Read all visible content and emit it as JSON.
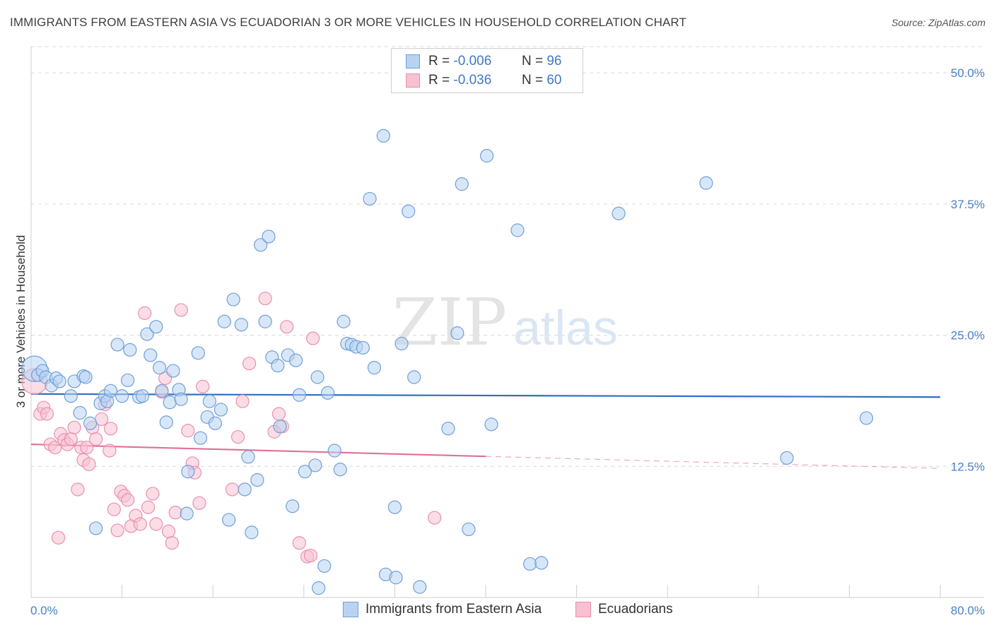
{
  "header": {
    "title": "IMMIGRANTS FROM EASTERN ASIA VS ECUADORIAN 3 OR MORE VEHICLES IN HOUSEHOLD CORRELATION CHART",
    "source": "Source: ZipAtlas.com"
  },
  "legend_stats": [
    {
      "r_label": "R =",
      "r_value": "-0.006",
      "n_label": "N =",
      "n_value": "96"
    },
    {
      "r_label": "R =",
      "r_value": "-0.036",
      "n_label": "N =",
      "n_value": "60"
    }
  ],
  "watermark": {
    "zip": "ZIP",
    "atlas": "atlas"
  },
  "colors": {
    "blue_fill": "#b8d3f2",
    "blue_stroke": "#6f9fd8",
    "blue_line": "#2f6fc1",
    "pink_fill": "#f7c1d1",
    "pink_stroke": "#e890ad",
    "pink_line": "#e06f99",
    "tick_text": "#4a80c8",
    "grid": "#d9d9d9"
  },
  "chart_data": {
    "type": "scatter",
    "title": "IMMIGRANTS FROM EASTERN ASIA VS ECUADORIAN 3 OR MORE VEHICLES IN HOUSEHOLD CORRELATION CHART",
    "xlabel": "",
    "ylabel": "3 or more Vehicles in Household",
    "xlim": [
      0,
      80
    ],
    "ylim": [
      0,
      52.5
    ],
    "x_tick_labels": [
      "0.0%",
      "80.0%"
    ],
    "y_ticks": [
      12.5,
      25.0,
      37.5,
      50.0
    ],
    "y_tick_labels": [
      "12.5%",
      "25.0%",
      "37.5%",
      "50.0%"
    ],
    "grid": true,
    "legend_position": "top-center",
    "series": [
      {
        "name": "Immigrants from Eastern Asia",
        "r": -0.006,
        "n": 96,
        "trend": {
          "x0": 0,
          "y0": 19.4,
          "x1": 80,
          "y1": 19.1
        },
        "points": [
          [
            0.3,
            21.8
          ],
          [
            0.6,
            21.2
          ],
          [
            1.0,
            21.6
          ],
          [
            1.3,
            21.0
          ],
          [
            1.8,
            20.2
          ],
          [
            2.2,
            20.9
          ],
          [
            2.5,
            20.6
          ],
          [
            3.5,
            19.2
          ],
          [
            3.8,
            20.6
          ],
          [
            4.3,
            17.6
          ],
          [
            4.6,
            21.1
          ],
          [
            4.8,
            21.0
          ],
          [
            5.2,
            16.6
          ],
          [
            5.7,
            6.6
          ],
          [
            6.1,
            18.5
          ],
          [
            6.5,
            19.2
          ],
          [
            6.7,
            18.7
          ],
          [
            7.0,
            19.7
          ],
          [
            7.6,
            24.1
          ],
          [
            8.0,
            19.2
          ],
          [
            8.5,
            20.7
          ],
          [
            8.7,
            23.6
          ],
          [
            9.5,
            19.1
          ],
          [
            9.8,
            19.2
          ],
          [
            10.2,
            25.1
          ],
          [
            10.5,
            23.1
          ],
          [
            11.0,
            25.8
          ],
          [
            11.3,
            21.9
          ],
          [
            11.5,
            19.7
          ],
          [
            11.9,
            16.7
          ],
          [
            12.2,
            18.6
          ],
          [
            12.5,
            21.6
          ],
          [
            13.0,
            19.8
          ],
          [
            13.2,
            18.9
          ],
          [
            13.7,
            8.0
          ],
          [
            13.8,
            12.0
          ],
          [
            14.7,
            23.3
          ],
          [
            14.9,
            15.2
          ],
          [
            15.5,
            17.2
          ],
          [
            15.7,
            18.7
          ],
          [
            16.2,
            16.6
          ],
          [
            16.7,
            17.9
          ],
          [
            17.0,
            26.3
          ],
          [
            17.4,
            7.4
          ],
          [
            17.8,
            28.4
          ],
          [
            18.5,
            26.0
          ],
          [
            18.8,
            10.3
          ],
          [
            19.1,
            13.4
          ],
          [
            19.4,
            6.2
          ],
          [
            19.9,
            11.2
          ],
          [
            20.2,
            33.6
          ],
          [
            20.6,
            26.3
          ],
          [
            20.9,
            34.4
          ],
          [
            21.2,
            22.9
          ],
          [
            21.7,
            22.1
          ],
          [
            21.9,
            16.3
          ],
          [
            22.6,
            23.1
          ],
          [
            23.0,
            8.7
          ],
          [
            23.3,
            22.6
          ],
          [
            23.6,
            19.3
          ],
          [
            24.1,
            12.0
          ],
          [
            25.0,
            12.6
          ],
          [
            25.2,
            21.0
          ],
          [
            25.3,
            0.9
          ],
          [
            25.8,
            3.0
          ],
          [
            26.1,
            19.5
          ],
          [
            26.7,
            14.0
          ],
          [
            27.2,
            12.2
          ],
          [
            27.5,
            26.3
          ],
          [
            27.8,
            24.2
          ],
          [
            28.2,
            24.1
          ],
          [
            28.6,
            23.9
          ],
          [
            29.2,
            23.8
          ],
          [
            29.8,
            38.0
          ],
          [
            30.2,
            21.9
          ],
          [
            31.2,
            2.2
          ],
          [
            32.0,
            8.6
          ],
          [
            32.1,
            1.9
          ],
          [
            32.6,
            24.2
          ],
          [
            33.2,
            36.8
          ],
          [
            33.7,
            21.0
          ],
          [
            34.2,
            1.0
          ],
          [
            36.7,
            16.1
          ],
          [
            37.5,
            25.2
          ],
          [
            37.9,
            39.4
          ],
          [
            38.5,
            6.5
          ],
          [
            40.1,
            42.1
          ],
          [
            40.5,
            16.5
          ],
          [
            43.9,
            3.2
          ],
          [
            44.9,
            3.3
          ],
          [
            51.7,
            36.6
          ],
          [
            59.4,
            39.5
          ],
          [
            66.5,
            13.3
          ],
          [
            73.5,
            17.1
          ],
          [
            42.8,
            35.0
          ],
          [
            31.0,
            44.0
          ]
        ]
      },
      {
        "name": "Ecuadorians",
        "r": -0.036,
        "n": 60,
        "trend": {
          "x0": 0,
          "y0": 14.6,
          "x1": 80,
          "y1": 12.3,
          "solid_until_x": 40
        },
        "points": [
          [
            0.3,
            20.6
          ],
          [
            0.8,
            17.5
          ],
          [
            1.1,
            18.1
          ],
          [
            1.4,
            17.5
          ],
          [
            1.7,
            14.6
          ],
          [
            2.1,
            14.3
          ],
          [
            2.4,
            5.7
          ],
          [
            2.6,
            15.6
          ],
          [
            2.9,
            15.0
          ],
          [
            3.2,
            14.6
          ],
          [
            3.5,
            15.1
          ],
          [
            3.8,
            16.2
          ],
          [
            4.1,
            10.3
          ],
          [
            4.4,
            14.3
          ],
          [
            4.6,
            13.1
          ],
          [
            4.9,
            14.3
          ],
          [
            5.1,
            12.7
          ],
          [
            5.4,
            16.2
          ],
          [
            5.7,
            15.1
          ],
          [
            6.2,
            17.0
          ],
          [
            6.5,
            18.4
          ],
          [
            6.9,
            14.0
          ],
          [
            7.0,
            16.1
          ],
          [
            7.3,
            8.4
          ],
          [
            7.6,
            6.4
          ],
          [
            7.9,
            10.1
          ],
          [
            8.2,
            9.7
          ],
          [
            8.5,
            9.3
          ],
          [
            8.8,
            6.8
          ],
          [
            9.2,
            7.8
          ],
          [
            9.6,
            7.0
          ],
          [
            10.0,
            27.1
          ],
          [
            10.3,
            8.6
          ],
          [
            10.7,
            9.9
          ],
          [
            11.0,
            7.0
          ],
          [
            11.5,
            19.6
          ],
          [
            11.8,
            20.9
          ],
          [
            12.1,
            6.3
          ],
          [
            12.4,
            5.2
          ],
          [
            12.7,
            8.1
          ],
          [
            13.2,
            27.4
          ],
          [
            13.8,
            15.9
          ],
          [
            14.2,
            12.8
          ],
          [
            14.4,
            11.9
          ],
          [
            14.8,
            9.0
          ],
          [
            15.1,
            20.1
          ],
          [
            17.7,
            10.3
          ],
          [
            18.2,
            15.3
          ],
          [
            18.6,
            18.7
          ],
          [
            19.2,
            22.3
          ],
          [
            20.6,
            28.5
          ],
          [
            21.8,
            17.5
          ],
          [
            22.1,
            16.3
          ],
          [
            22.5,
            25.8
          ],
          [
            23.6,
            5.2
          ],
          [
            24.3,
            3.9
          ],
          [
            24.6,
            4.0
          ],
          [
            24.8,
            24.7
          ],
          [
            35.5,
            7.6
          ],
          [
            21.4,
            15.8
          ]
        ]
      }
    ]
  },
  "bottom_legend": [
    {
      "label": "Immigrants from Eastern Asia"
    },
    {
      "label": "Ecuadorians"
    }
  ]
}
